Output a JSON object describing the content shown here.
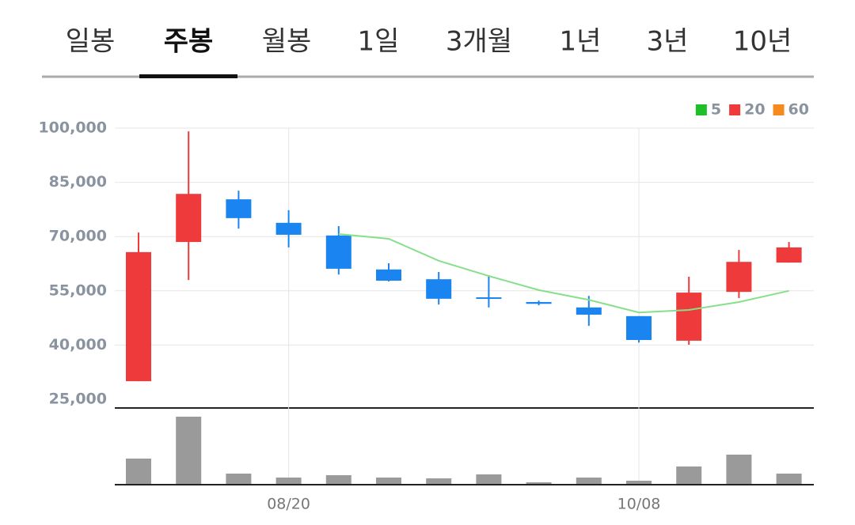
{
  "tabs": [
    "일봉",
    "주봉",
    "월봉",
    "1일",
    "3개월",
    "1년",
    "3년",
    "10년"
  ],
  "active_tab": 1,
  "chart_data": {
    "type": "candlestick",
    "categories": [
      null,
      null,
      null,
      "08/20",
      null,
      null,
      null,
      null,
      null,
      null,
      "10/08",
      null,
      null,
      null
    ],
    "open": [
      30000,
      68500,
      80300,
      73800,
      70300,
      60900,
      58200,
      53200,
      51900,
      50400,
      48000,
      41200,
      54700,
      62800
    ],
    "high": [
      71100,
      99100,
      82700,
      77300,
      72900,
      62600,
      60200,
      59300,
      52300,
      53600,
      48000,
      58900,
      66300,
      68500
    ],
    "low": [
      30000,
      58000,
      72200,
      67000,
      59500,
      57600,
      51200,
      50400,
      51000,
      45300,
      40700,
      40100,
      53000,
      62800
    ],
    "close": [
      65700,
      81800,
      75100,
      70500,
      61100,
      57800,
      52800,
      52900,
      51400,
      48400,
      41400,
      54500,
      63000,
      67000
    ],
    "up_color": "#ee3a3a",
    "down_color": "#1a84f0",
    "moving_averages": [
      {
        "name": "5",
        "color": "#1fbf2a",
        "line_color": "#86e08a",
        "values": [
          null,
          null,
          null,
          null,
          70700,
          69400,
          63300,
          59100,
          55200,
          52500,
          49000,
          49700,
          51900,
          55000
        ]
      },
      {
        "name": "20",
        "color": "#ee3a3a",
        "line_color": "#ee3a3a",
        "values": [
          null,
          null,
          null,
          null,
          null,
          null,
          null,
          null,
          null,
          null,
          null,
          null,
          null,
          null
        ]
      },
      {
        "name": "60",
        "color": "#f58a1f",
        "line_color": "#f58a1f",
        "values": [
          null,
          null,
          null,
          null,
          null,
          null,
          null,
          null,
          null,
          null,
          null,
          null,
          null,
          null
        ]
      }
    ],
    "volume": [
      32,
      85,
      13,
      8,
      11,
      8,
      7,
      12,
      2,
      8,
      4,
      22,
      37,
      13
    ],
    "volume_color": "#9a9a9a",
    "ylim": [
      25000,
      100000
    ],
    "yticks": [
      {
        "value": 25000,
        "label": "25,000"
      },
      {
        "value": 40000,
        "label": "40,000"
      },
      {
        "value": 55000,
        "label": "55,000"
      },
      {
        "value": 70000,
        "label": "70,000"
      },
      {
        "value": 85000,
        "label": "85,000"
      },
      {
        "value": 100000,
        "label": "100,000"
      }
    ],
    "grid": true
  }
}
